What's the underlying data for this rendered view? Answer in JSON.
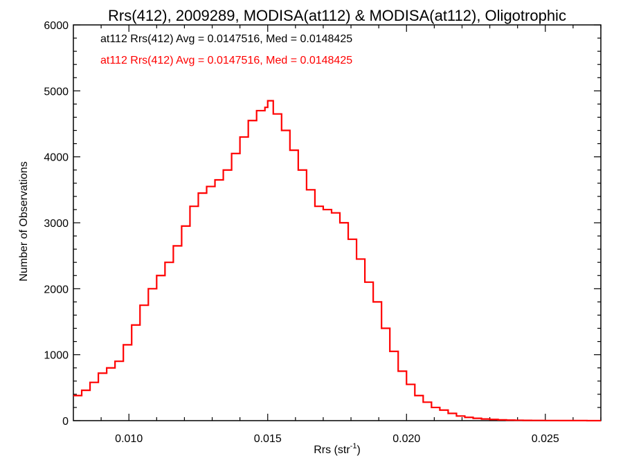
{
  "chart_data": {
    "type": "line",
    "drawstyle": "steps",
    "title": "Rrs(412), 2009289, MODISA(at112) & MODISA(at112), Oligotrophic",
    "xlabel_main": "Rrs (str",
    "xlabel_sup": "-1",
    "xlabel_close": ")",
    "ylabel": "Number of Observations",
    "xlim": [
      0.008,
      0.027
    ],
    "ylim": [
      0,
      6000
    ],
    "xticks": [
      0.01,
      0.015,
      0.02,
      0.025
    ],
    "xtick_labels": [
      "0.010",
      "0.015",
      "0.020",
      "0.025"
    ],
    "yticks": [
      0,
      1000,
      2000,
      3000,
      4000,
      5000,
      6000
    ],
    "ytick_labels": [
      "0",
      "1000",
      "2000",
      "3000",
      "4000",
      "5000",
      "6000"
    ],
    "grid": false,
    "annotations": [
      {
        "text": "at112 Rrs(412) Avg = 0.0147516, Med = 0.0148425",
        "color": "#000000"
      },
      {
        "text": "at112 Rrs(412) Avg = 0.0147516, Med = 0.0148425",
        "color": "#ff0000"
      }
    ],
    "series": [
      {
        "color": "#ff0000",
        "x": [
          0.008,
          0.0083,
          0.0086,
          0.0089,
          0.0092,
          0.0095,
          0.0098,
          0.0101,
          0.0104,
          0.0107,
          0.011,
          0.0113,
          0.0116,
          0.0119,
          0.0122,
          0.0125,
          0.0128,
          0.0131,
          0.0134,
          0.0137,
          0.014,
          0.0143,
          0.0146,
          0.0149,
          0.015,
          0.0152,
          0.0155,
          0.0158,
          0.0161,
          0.0164,
          0.0167,
          0.017,
          0.0173,
          0.0176,
          0.0179,
          0.0182,
          0.0185,
          0.0188,
          0.0191,
          0.0194,
          0.0197,
          0.02,
          0.0203,
          0.0206,
          0.0209,
          0.0212,
          0.0215,
          0.0218,
          0.0221,
          0.0224,
          0.0227,
          0.023,
          0.0233,
          0.0236,
          0.0239,
          0.0242,
          0.0245,
          0.025,
          0.0255,
          0.026,
          0.0265,
          0.027
        ],
        "y": [
          380,
          460,
          580,
          720,
          800,
          900,
          1150,
          1450,
          1750,
          2000,
          2200,
          2400,
          2650,
          2950,
          3250,
          3450,
          3550,
          3650,
          3800,
          4050,
          4300,
          4550,
          4700,
          4750,
          4850,
          4650,
          4400,
          4100,
          3800,
          3500,
          3250,
          3200,
          3150,
          3000,
          2750,
          2450,
          2100,
          1800,
          1400,
          1050,
          750,
          550,
          380,
          280,
          200,
          160,
          110,
          70,
          50,
          35,
          25,
          18,
          12,
          8,
          6,
          4,
          3,
          2,
          1,
          1,
          0,
          0
        ]
      }
    ]
  }
}
